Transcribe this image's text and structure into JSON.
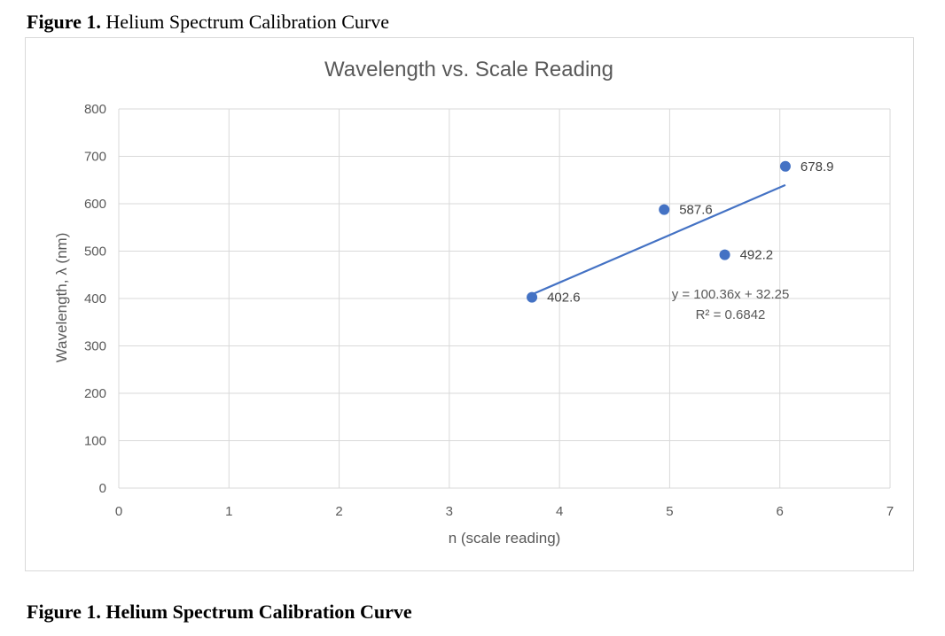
{
  "figure_caption_top": {
    "label": "Figure 1.",
    "title": "Helium Spectrum Calibration Curve"
  },
  "figure_caption_bottom": "Figure 1. Helium Spectrum Calibration Curve",
  "chart_data": {
    "type": "scatter",
    "title": "Wavelength vs. Scale Reading",
    "xlabel": "n (scale reading)",
    "ylabel": "Wavelength, λ (nm)",
    "xlim": [
      0,
      7
    ],
    "ylim": [
      0,
      800
    ],
    "xticks": [
      "0",
      "1",
      "2",
      "3",
      "4",
      "5",
      "6",
      "7"
    ],
    "yticks": [
      "0",
      "100",
      "200",
      "300",
      "400",
      "500",
      "600",
      "700",
      "800"
    ],
    "grid": true,
    "series": [
      {
        "points": [
          {
            "x": 3.75,
            "y": 402.6,
            "label": "402.6"
          },
          {
            "x": 4.95,
            "y": 587.6,
            "label": "587.6"
          },
          {
            "x": 5.5,
            "y": 492.2,
            "label": "492.2"
          },
          {
            "x": 6.05,
            "y": 678.9,
            "label": "678.9"
          }
        ],
        "trendline": {
          "slope": 100.36,
          "intercept": 32.25,
          "x_range": [
            3.75,
            6.05
          ],
          "equation": "y = 100.36x + 32.25",
          "r_squared": "R² = 0.6842"
        }
      }
    ],
    "colors": {
      "marker": "#4472c4",
      "trendline": "#4472c4",
      "grid": "#d9d9d9",
      "text": "#595959"
    }
  }
}
